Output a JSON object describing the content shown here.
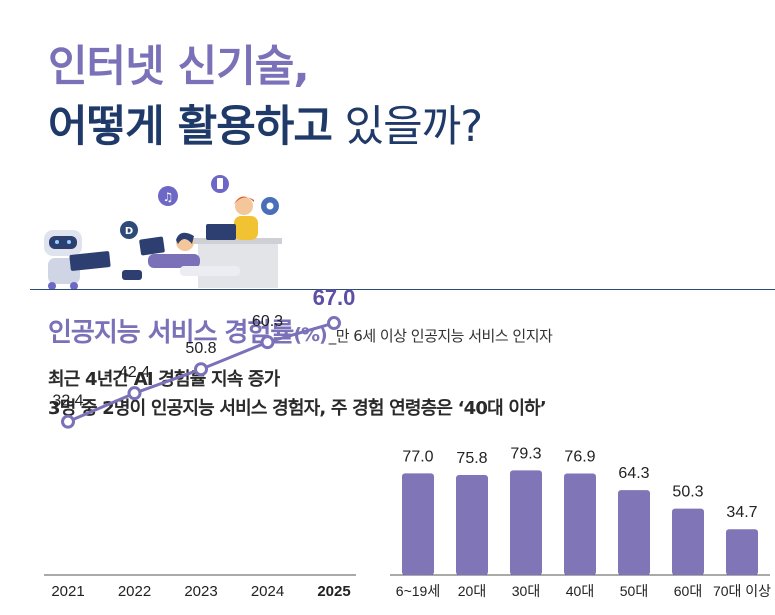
{
  "title": {
    "line1": "인터넷 신기술,",
    "line2_bold": "어떻게 활용하고",
    "line2_tail": " 있을까?"
  },
  "section": {
    "title": "인공지능 서비스 경험률",
    "unit": "(%)",
    "note": "_만 6세 이상 인공지능 서비스 인지자"
  },
  "subtitles": {
    "line1": "최근 4년간 AI 경험률 지속 증가",
    "line2": "3명 중 2명이 인공지능 서비스 경험자, 주 경험 연령층은 ‘40대 이하’"
  },
  "colors": {
    "primary": "#7a71b8",
    "navy": "#1f3a68",
    "bar": "#8075b6",
    "highlight": "#5d4fa6"
  },
  "chart_data": [
    {
      "type": "line",
      "x": [
        "2021",
        "2022",
        "2023",
        "2024",
        "2025"
      ],
      "values": [
        32.4,
        42.4,
        50.8,
        60.3,
        67.0
      ],
      "value_labels": [
        "32.4",
        "42.4",
        "50.8",
        "60.3",
        "67.0"
      ],
      "highlight_index": 4,
      "ylim": [
        0,
        100
      ]
    },
    {
      "type": "bar",
      "categories": [
        "6~19세",
        "20대",
        "30대",
        "40대",
        "50대",
        "60대",
        "70대 이상"
      ],
      "values": [
        77.0,
        75.8,
        79.3,
        76.9,
        64.3,
        50.3,
        34.7
      ],
      "value_labels": [
        "77.0",
        "75.8",
        "79.3",
        "76.9",
        "64.3",
        "50.3",
        "34.7"
      ],
      "ylim": [
        0,
        100
      ]
    }
  ]
}
